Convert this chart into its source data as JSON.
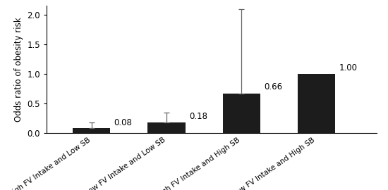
{
  "categories": [
    "High FV Intake and Low SB",
    "Low FV Intake and Low SB",
    "High FV Intake and High SB",
    "Low FV Intake and High SB"
  ],
  "values": [
    0.08,
    0.18,
    0.66,
    1.0
  ],
  "errors": [
    0.1,
    0.17,
    1.43,
    0.0
  ],
  "bar_color": "#1c1c1c",
  "error_color": "#666666",
  "ylabel": "Odds ratio of obesity risk",
  "ylim": [
    0,
    2.15
  ],
  "yticks": [
    0,
    0.5,
    1,
    1.5,
    2
  ],
  "value_labels": [
    "0.08",
    "0.18",
    "0.66",
    "1.00"
  ],
  "background_color": "#ffffff",
  "bar_width": 0.5,
  "label_fontsize": 7.5,
  "ylabel_fontsize": 8.5,
  "tick_fontsize": 8.5,
  "value_label_fontsize": 8.5
}
